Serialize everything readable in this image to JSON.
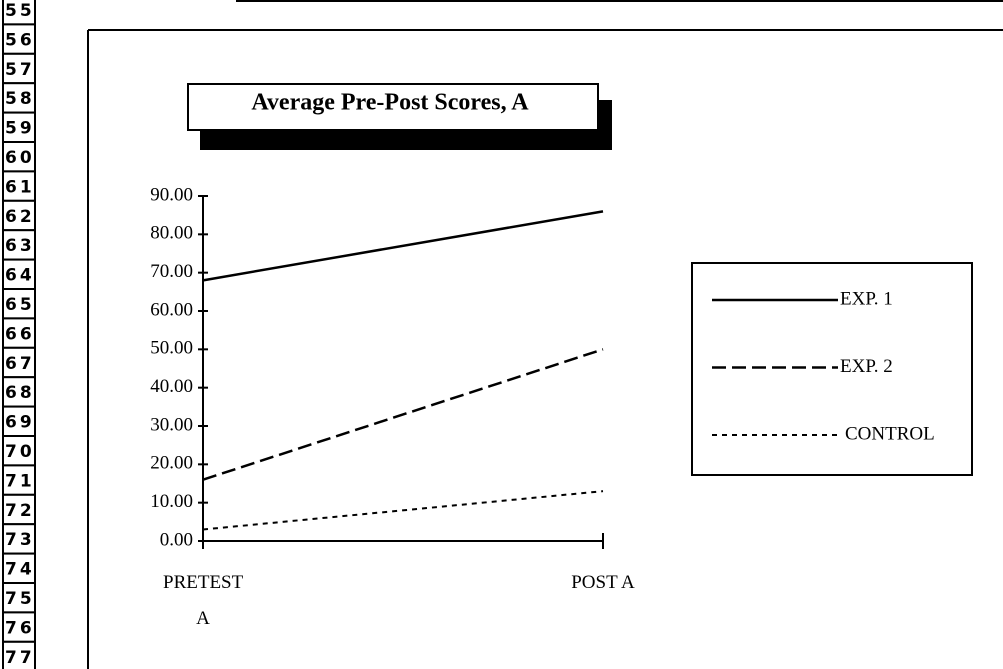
{
  "row_headers": [
    "55",
    "56",
    "57",
    "58",
    "59",
    "60",
    "61",
    "62",
    "63",
    "64",
    "65",
    "66",
    "67",
    "68",
    "69",
    "70",
    "71",
    "72",
    "73",
    "74",
    "75",
    "76",
    "77"
  ],
  "chart_data": {
    "type": "line",
    "title": "Average Pre-Post Scores, A",
    "categories": [
      "PRETEST A",
      "POST A"
    ],
    "series": [
      {
        "name": "EXP. 1",
        "color": "#000000",
        "dash": "solid",
        "values": [
          68,
          86
        ]
      },
      {
        "name": "EXP. 2",
        "color": "#000000",
        "dash": "dashed",
        "values": [
          16,
          50
        ]
      },
      {
        "name": "CONTROL",
        "color": "#000000",
        "dash": "dotted",
        "values": [
          3,
          13
        ]
      }
    ],
    "ylim": [
      0,
      90
    ],
    "yticks": [
      {
        "value": 0,
        "label": "0.00"
      },
      {
        "value": 10,
        "label": "10.00"
      },
      {
        "value": 20,
        "label": "20.00"
      },
      {
        "value": 30,
        "label": "30.00"
      },
      {
        "value": 40,
        "label": "40.00"
      },
      {
        "value": 50,
        "label": "50.00"
      },
      {
        "value": 60,
        "label": "60.00"
      },
      {
        "value": 70,
        "label": "70.00"
      },
      {
        "value": 80,
        "label": "80.00"
      },
      {
        "value": 90,
        "label": "90.00"
      }
    ],
    "legend": "right",
    "grid": false
  }
}
